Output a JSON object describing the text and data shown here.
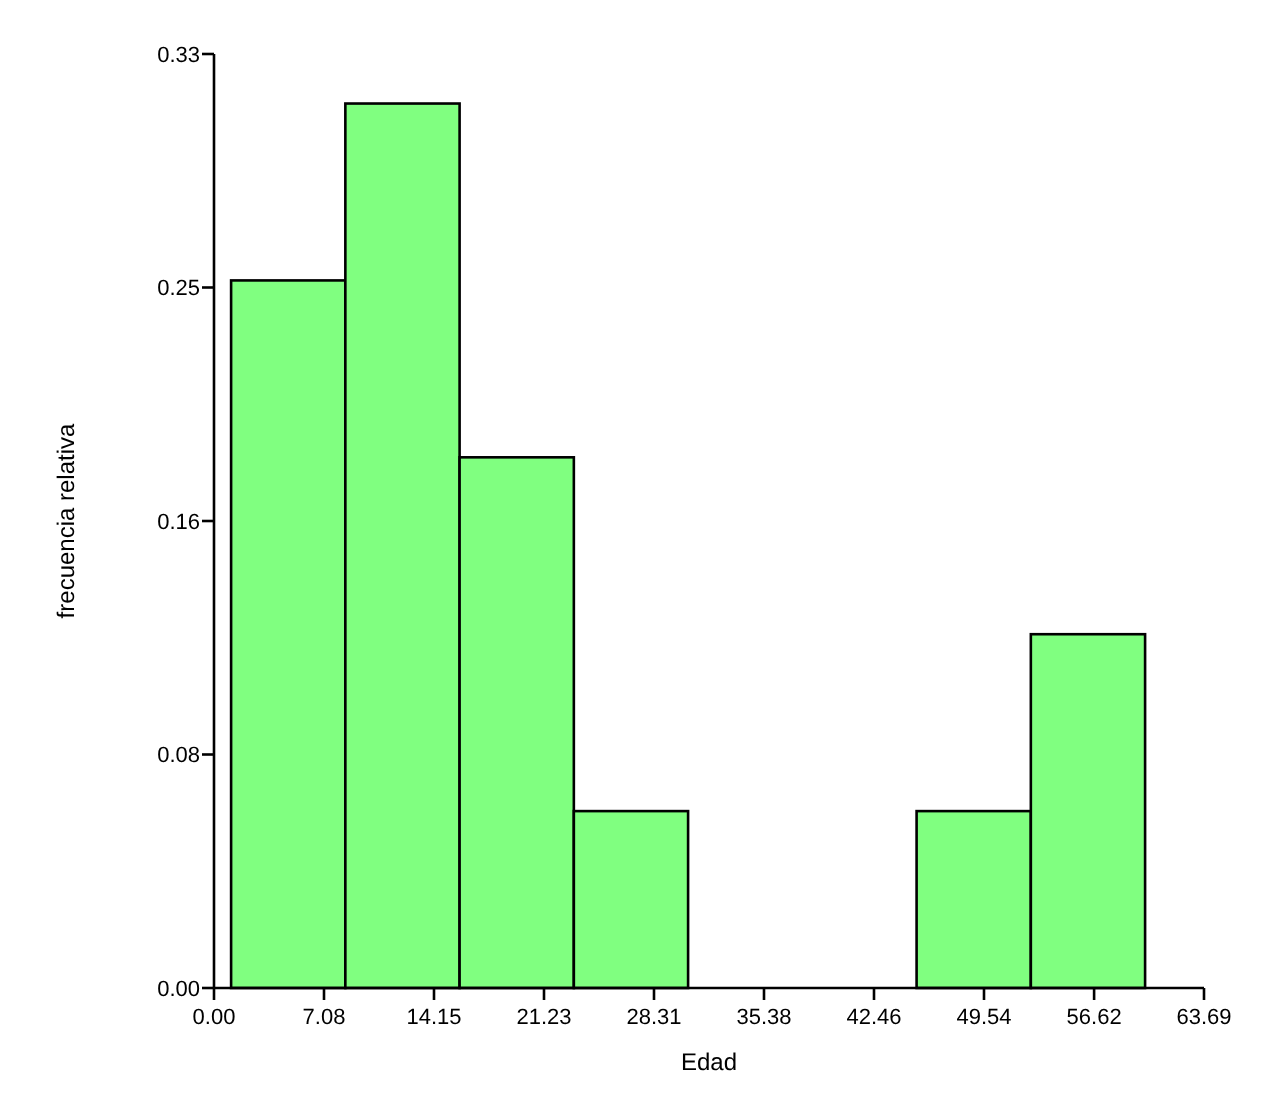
{
  "chart_data": {
    "type": "histogram",
    "xlabel": "Edad",
    "ylabel": "frecuencia relativa",
    "bins": [
      1.1,
      8.45,
      15.8,
      23.15,
      30.5,
      37.85,
      45.2,
      52.55,
      59.9
    ],
    "values": [
      0.25,
      0.3125,
      0.1875,
      0.0625,
      0,
      0,
      0.0625,
      0.125
    ],
    "color": "#80ff80",
    "xlim": [
      0,
      63.69
    ],
    "xticks": [
      {
        "value": 0,
        "label": "0.00"
      },
      {
        "value": 7.0767,
        "label": "7.08"
      },
      {
        "value": 14.1533,
        "label": "14.15"
      },
      {
        "value": 21.23,
        "label": "21.23"
      },
      {
        "value": 28.3067,
        "label": "28.31"
      },
      {
        "value": 35.3833,
        "label": "35.38"
      },
      {
        "value": 42.46,
        "label": "42.46"
      },
      {
        "value": 49.5367,
        "label": "49.54"
      },
      {
        "value": 56.62,
        "label": "56.62"
      },
      {
        "value": 63.69,
        "label": "63.69"
      }
    ],
    "ylim": [
      0,
      0.33
    ],
    "yticks": [
      {
        "value": 0,
        "label": "0.00"
      },
      {
        "value": 0.0825,
        "label": "0.08"
      },
      {
        "value": 0.165,
        "label": "0.16"
      },
      {
        "value": 0.2475,
        "label": "0.25"
      },
      {
        "value": 0.33,
        "label": "0.33"
      }
    ],
    "grid": false
  }
}
